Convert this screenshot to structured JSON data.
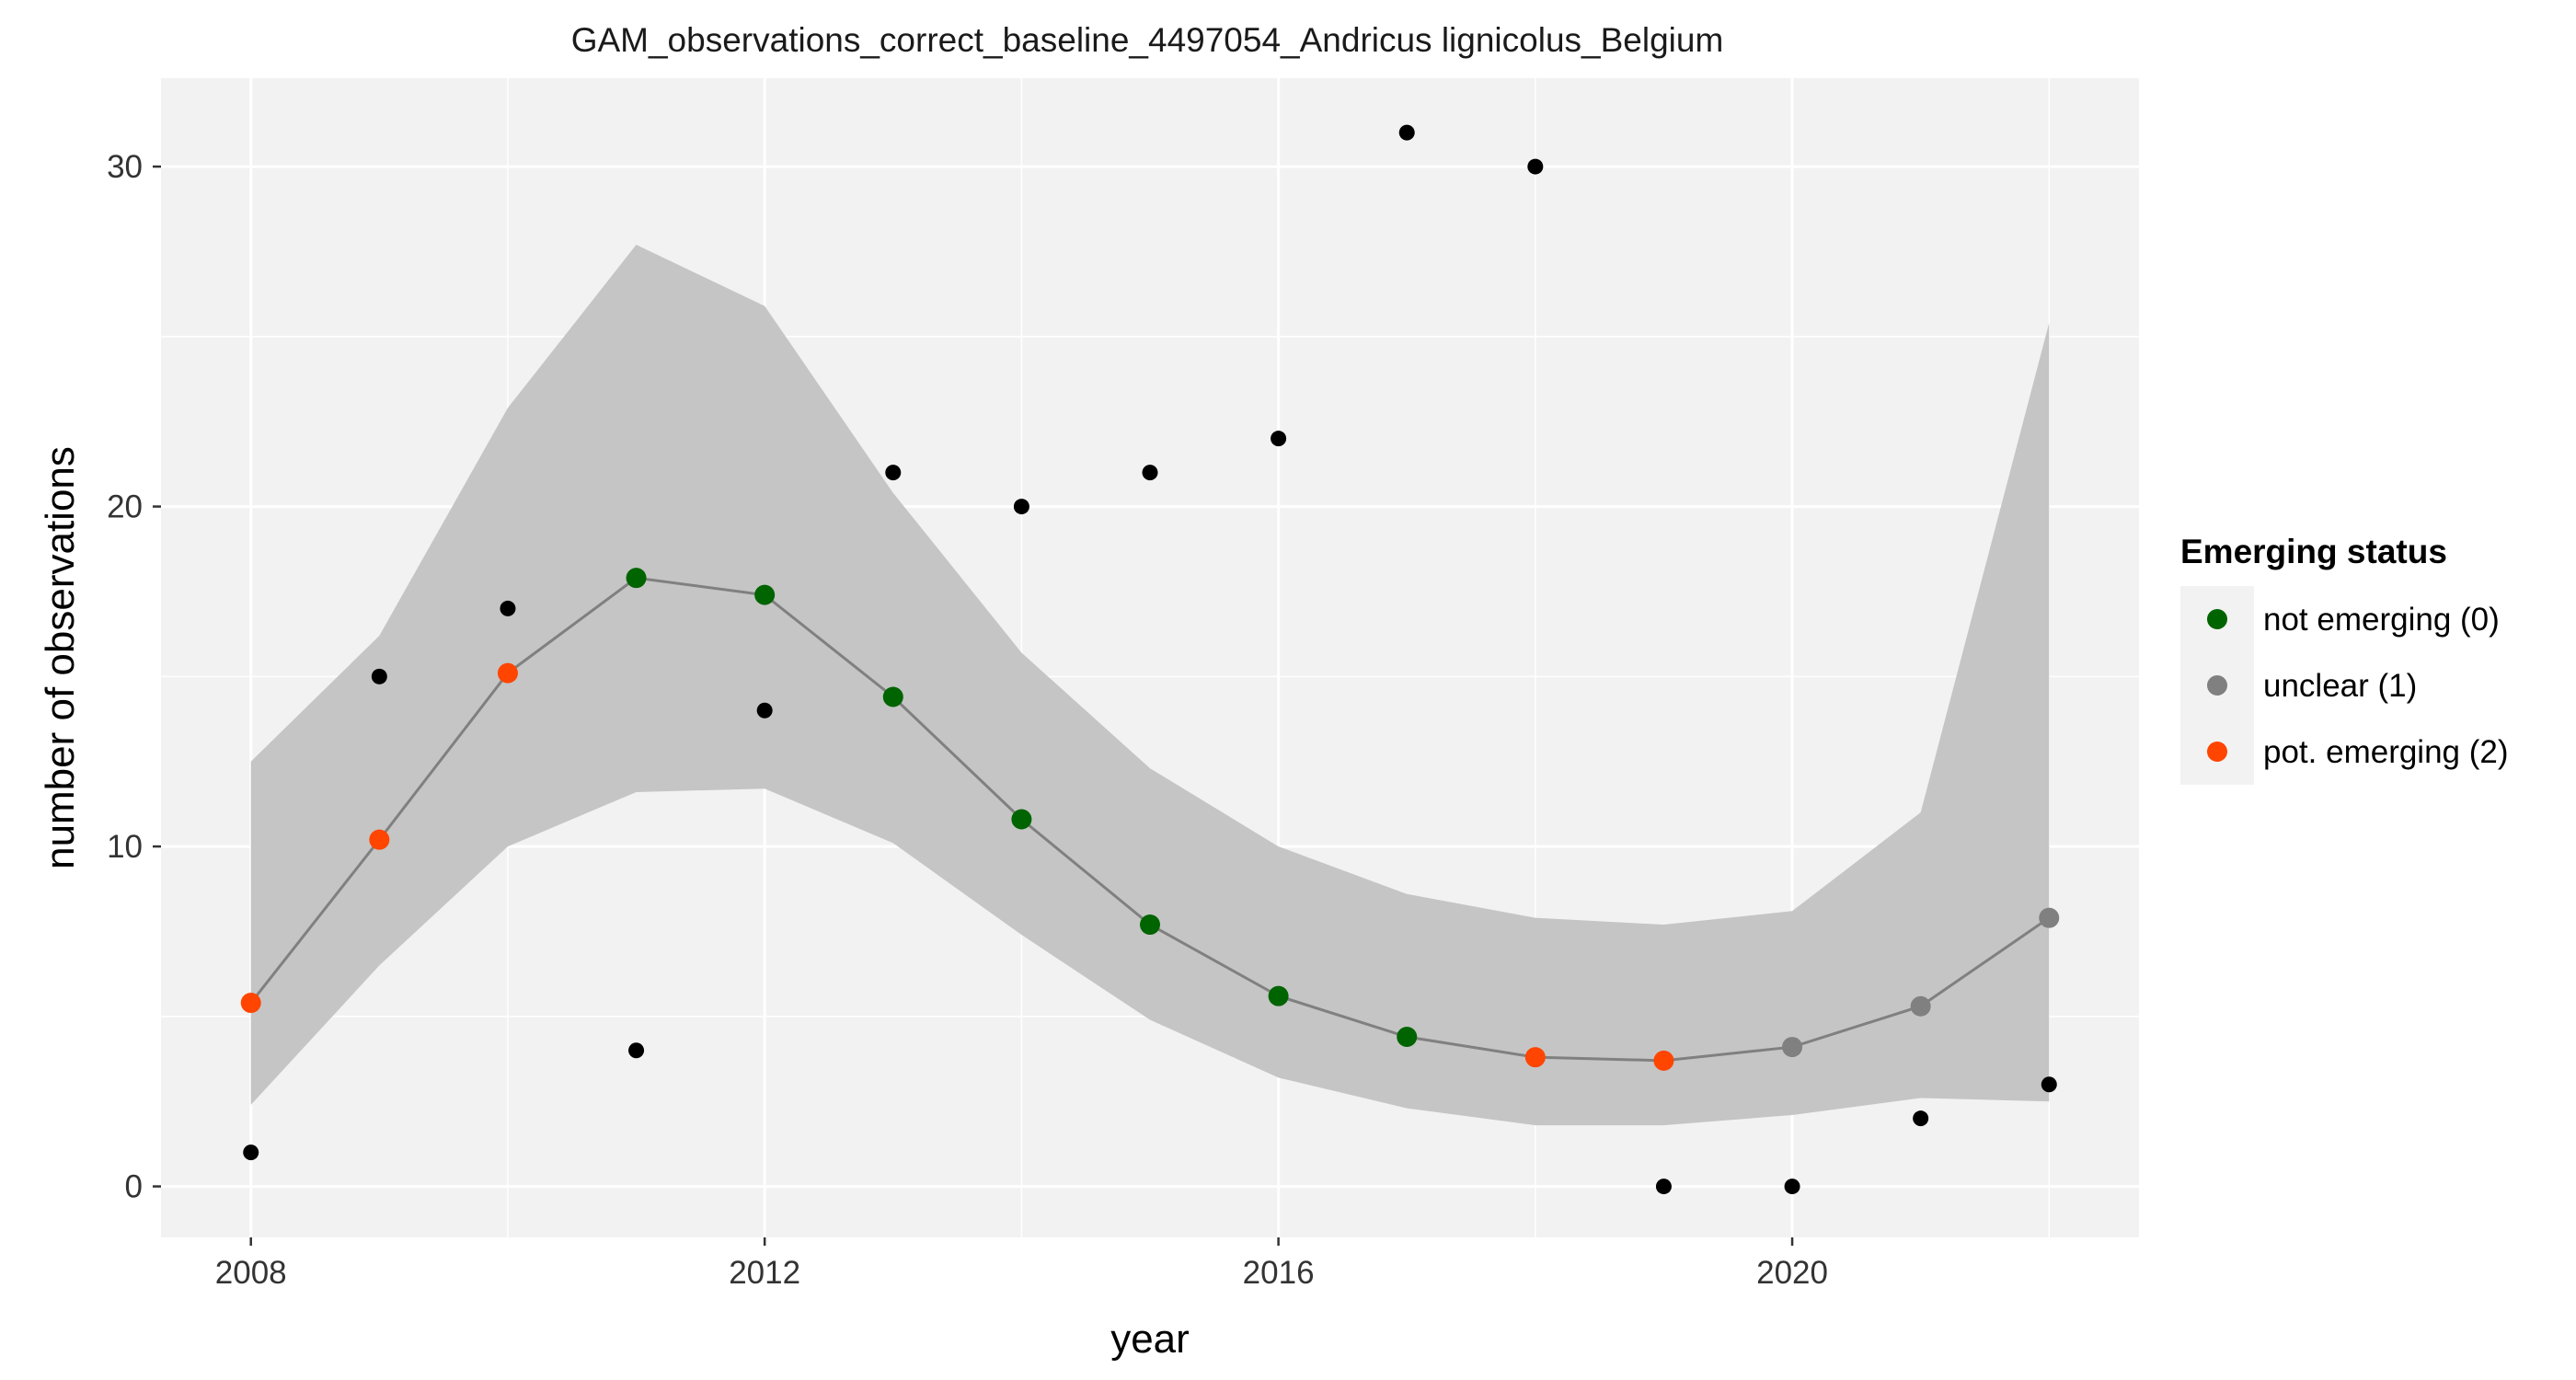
{
  "chart_data": {
    "type": "scatter",
    "title": "GAM_observations_correct_baseline_4497054_Andricus lignicolus_Belgium",
    "xlabel": "year",
    "ylabel": "number of observations",
    "xlim": [
      2007.3,
      2022.7
    ],
    "ylim": [
      -1.5,
      32.6
    ],
    "x_ticks": [
      2008,
      2012,
      2016,
      2020
    ],
    "x_tick_labels": [
      "2008",
      "2012",
      "2016",
      "2020"
    ],
    "y_ticks": [
      0,
      10,
      20,
      30
    ],
    "y_tick_labels": [
      "0",
      "10",
      "20",
      "30"
    ],
    "grid": true,
    "legend_position": "right",
    "observations": [
      {
        "year": 2008,
        "value": 1
      },
      {
        "year": 2009,
        "value": 15
      },
      {
        "year": 2010,
        "value": 17
      },
      {
        "year": 2011,
        "value": 4
      },
      {
        "year": 2012,
        "value": 14
      },
      {
        "year": 2013,
        "value": 21
      },
      {
        "year": 2014,
        "value": 20
      },
      {
        "year": 2015,
        "value": 21
      },
      {
        "year": 2016,
        "value": 22
      },
      {
        "year": 2017,
        "value": 31
      },
      {
        "year": 2018,
        "value": 30
      },
      {
        "year": 2019,
        "value": 0
      },
      {
        "year": 2020,
        "value": 0
      },
      {
        "year": 2021,
        "value": 2
      },
      {
        "year": 2022,
        "value": 3
      }
    ],
    "gam_fit": [
      {
        "year": 2008,
        "fit": 5.4,
        "lower": 2.4,
        "upper": 12.5,
        "status": 2
      },
      {
        "year": 2009,
        "fit": 10.2,
        "lower": 6.5,
        "upper": 16.2,
        "status": 2
      },
      {
        "year": 2010,
        "fit": 15.1,
        "lower": 10.0,
        "upper": 22.9,
        "status": 2
      },
      {
        "year": 2011,
        "fit": 17.9,
        "lower": 11.6,
        "upper": 27.7,
        "status": 0
      },
      {
        "year": 2012,
        "fit": 17.4,
        "lower": 11.7,
        "upper": 25.9,
        "status": 0
      },
      {
        "year": 2013,
        "fit": 14.4,
        "lower": 10.1,
        "upper": 20.4,
        "status": 0
      },
      {
        "year": 2014,
        "fit": 10.8,
        "lower": 7.4,
        "upper": 15.7,
        "status": 0
      },
      {
        "year": 2015,
        "fit": 7.7,
        "lower": 4.9,
        "upper": 12.3,
        "status": 0
      },
      {
        "year": 2016,
        "fit": 5.6,
        "lower": 3.2,
        "upper": 10.0,
        "status": 0
      },
      {
        "year": 2017,
        "fit": 4.4,
        "lower": 2.3,
        "upper": 8.6,
        "status": 0
      },
      {
        "year": 2018,
        "fit": 3.8,
        "lower": 1.8,
        "upper": 7.9,
        "status": 2
      },
      {
        "year": 2019,
        "fit": 3.7,
        "lower": 1.8,
        "upper": 7.7,
        "status": 2
      },
      {
        "year": 2020,
        "fit": 4.1,
        "lower": 2.1,
        "upper": 8.1,
        "status": 1
      },
      {
        "year": 2021,
        "fit": 5.3,
        "lower": 2.6,
        "upper": 11.0,
        "status": 1
      },
      {
        "year": 2022,
        "fit": 7.9,
        "lower": 2.5,
        "upper": 25.4,
        "status": 1
      }
    ],
    "legend": {
      "title": "Emerging status",
      "entries": [
        {
          "status": 0,
          "label": "not emerging (0)",
          "color": "#006400"
        },
        {
          "status": 1,
          "label": "unclear (1)",
          "color": "#808080"
        },
        {
          "status": 2,
          "label": "pot. emerging (2)",
          "color": "#FF4500"
        }
      ]
    },
    "colors": {
      "panel_background": "#F2F2F2",
      "grid": "#FFFFFF",
      "ribbon": "#C5C5C5",
      "fit_line": "#808080",
      "observation_point": "#000000"
    }
  }
}
